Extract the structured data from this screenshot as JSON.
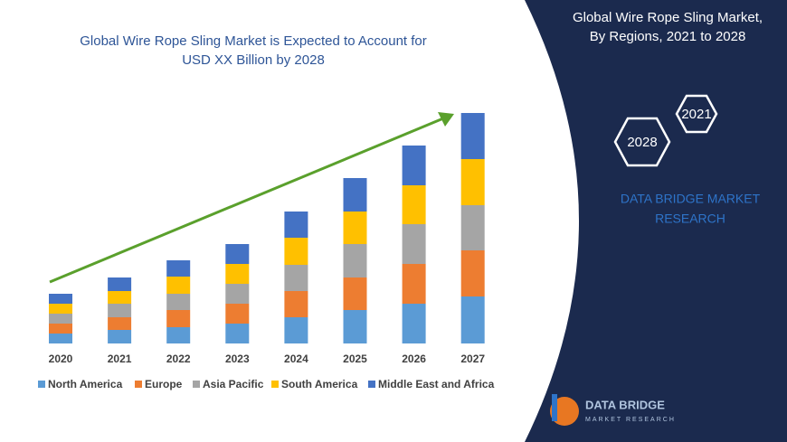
{
  "chart_data": {
    "type": "stacked-bar",
    "title": [
      "Global Wire Rope Sling Market is Expected to Account for",
      "USD XX Billion by 2028"
    ],
    "categories": [
      "2020",
      "2021",
      "2022",
      "2023",
      "2024",
      "2025",
      "2026",
      "2027"
    ],
    "series": [
      {
        "name": "North America",
        "color": "#5b9bd5",
        "values": [
          11,
          15,
          18,
          22,
          29,
          37,
          44,
          52
        ]
      },
      {
        "name": "Europe",
        "color": "#ed7d31",
        "values": [
          11,
          14,
          19,
          22,
          29,
          36,
          44,
          51
        ]
      },
      {
        "name": "Asia Pacific",
        "color": "#a5a5a5",
        "values": [
          11,
          15,
          18,
          22,
          29,
          37,
          44,
          50
        ]
      },
      {
        "name": "South America",
        "color": "#ffc000",
        "values": [
          11,
          14,
          19,
          22,
          30,
          36,
          43,
          51
        ]
      },
      {
        "name": "Middle East and Africa",
        "color": "#4472c4",
        "values": [
          11,
          15,
          18,
          22,
          29,
          37,
          44,
          51
        ]
      }
    ],
    "ylim": [
      0,
      255
    ]
  },
  "panel": {
    "title": [
      "Global Wire Rope Sling Market,",
      "By Regions, 2021 to 2028"
    ],
    "hex_labels": [
      "2021",
      "2028"
    ],
    "brand": [
      "DATA BRIDGE MARKET",
      "RESEARCH"
    ],
    "logo": [
      "DATA BRIDGE",
      "MARKET RESEARCH"
    ]
  }
}
